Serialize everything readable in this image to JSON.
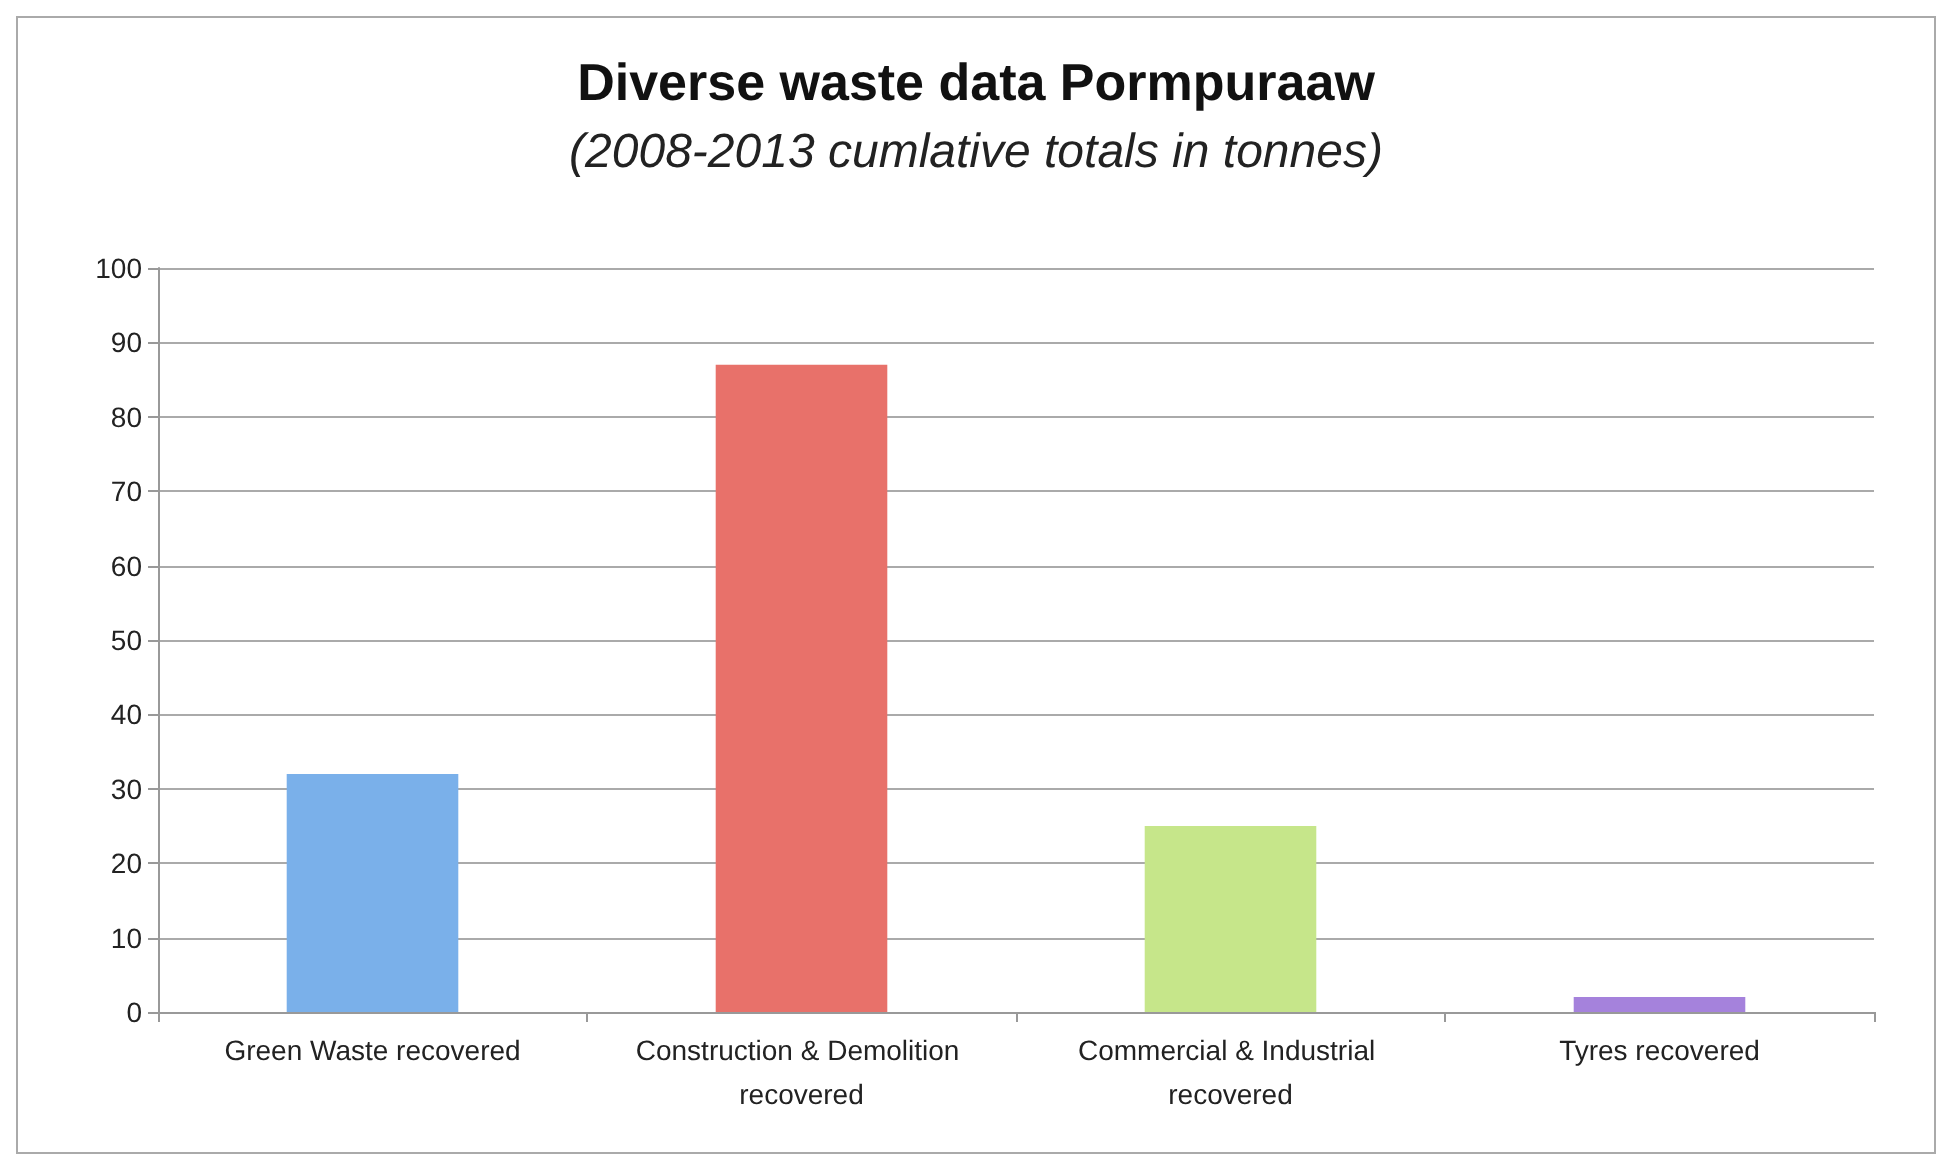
{
  "chart_data": {
    "type": "bar",
    "title": "Diverse waste data Pormpuraaw",
    "subtitle": "(2008-2013 cumlative totals in tonnes)",
    "categories": [
      "Green Waste recovered",
      "Construction & Demolition recovered",
      "Commercial & Industrial recovered",
      "Tyres recovered"
    ],
    "values": [
      32,
      87,
      25,
      2
    ],
    "colors": [
      "#7ab0ea",
      "#e8716a",
      "#c6e68a",
      "#a582dc"
    ],
    "ylim": [
      0,
      100
    ],
    "yticks": [
      0,
      10,
      20,
      30,
      40,
      50,
      60,
      70,
      80,
      90,
      100
    ],
    "grid": "y"
  }
}
